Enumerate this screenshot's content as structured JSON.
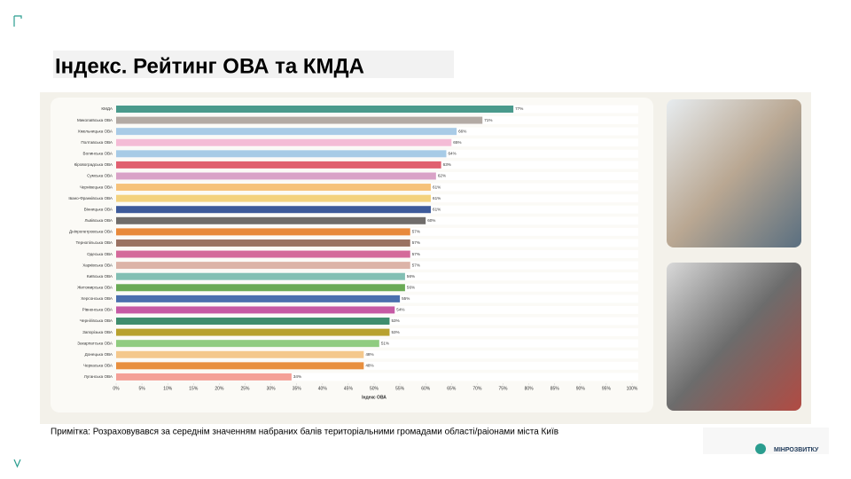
{
  "slide_title": "Індекс. Рейтинг ОВА та КМДА",
  "note": "Примітка: Розраховувався за середнім значенням набраних балів територіальними громадами області/раіонами міста Київ",
  "logo_text": "МІНРОЗВИТКУ",
  "chart_data": {
    "type": "hbar",
    "x_label": "Індекс ОВА",
    "categories": [
      "КМДА",
      "Миколаївська ОВА",
      "Хмельницька ОВА",
      "Полтавська ОВА",
      "Волинська ОВА",
      "Кіровоградська ОВА",
      "Сумська ОВА",
      "Чернівецька ОВА",
      "Івано-Франківська ОВА",
      "Вінницька ОВА",
      "Львівська ОВА",
      "Дніпропетровська ОВА",
      "Тернопільська ОВА",
      "Одеська ОВА",
      "Харківська ОВА",
      "Київська ОВА",
      "Житомирська ОВА",
      "Херсонська ОВА",
      "Рівненська ОВА",
      "Чернігівська ОВА",
      "Запорізька ОВА",
      "Закарпатська ОВА",
      "Донецька ОВА",
      "Черкаська ОВА",
      "Луганська ОВА"
    ],
    "values": [
      77,
      71,
      66,
      65,
      64,
      63,
      62,
      61,
      61,
      61,
      60,
      57,
      57,
      57,
      57,
      56,
      56,
      55,
      54,
      53,
      53,
      51,
      48,
      48,
      34
    ],
    "value_labels": [
      "77%",
      "71%",
      "66%",
      "65%",
      "64%",
      "63%",
      "62%",
      "61%",
      "61%",
      "61%",
      "60%",
      "57%",
      "57%",
      "57%",
      "57%",
      "56%",
      "56%",
      "55%",
      "54%",
      "53%",
      "53%",
      "51%",
      "48%",
      "48%",
      "34%"
    ],
    "colors": [
      "#4a9a8c",
      "#b3aaa4",
      "#a9cbe6",
      "#f4bcd6",
      "#a7cbe6",
      "#e06070",
      "#d9a2c7",
      "#f6c27a",
      "#f3d27e",
      "#3d5a9a",
      "#6f6c6a",
      "#e8893a",
      "#9a7262",
      "#d46a9a",
      "#dcb4a8",
      "#82bfb3",
      "#6aaa55",
      "#4a6fae",
      "#c55aa4",
      "#3f8d6e",
      "#b8a12f",
      "#90cc80",
      "#f4c88c",
      "#e88f3e",
      "#f4a097"
    ],
    "xlim": [
      0,
      100
    ],
    "xticks": [
      {
        "value": 0,
        "label": "0%"
      },
      {
        "value": 5,
        "label": "5%"
      },
      {
        "value": 10,
        "label": "10%"
      },
      {
        "value": 15,
        "label": "15%"
      },
      {
        "value": 20,
        "label": "20%"
      },
      {
        "value": 25,
        "label": "25%"
      },
      {
        "value": 30,
        "label": "30%"
      },
      {
        "value": 35,
        "label": "35%"
      },
      {
        "value": 40,
        "label": "40%"
      },
      {
        "value": 45,
        "label": "45%"
      },
      {
        "value": 50,
        "label": "50%"
      },
      {
        "value": 55,
        "label": "55%"
      },
      {
        "value": 60,
        "label": "60%"
      },
      {
        "value": 65,
        "label": "65%"
      },
      {
        "value": 70,
        "label": "70%"
      },
      {
        "value": 75,
        "label": "75%"
      },
      {
        "value": 80,
        "label": "80%"
      },
      {
        "value": 85,
        "label": "85%"
      },
      {
        "value": 90,
        "label": "90%"
      },
      {
        "value": 95,
        "label": "95%"
      },
      {
        "value": 100,
        "label": "100%"
      }
    ]
  }
}
